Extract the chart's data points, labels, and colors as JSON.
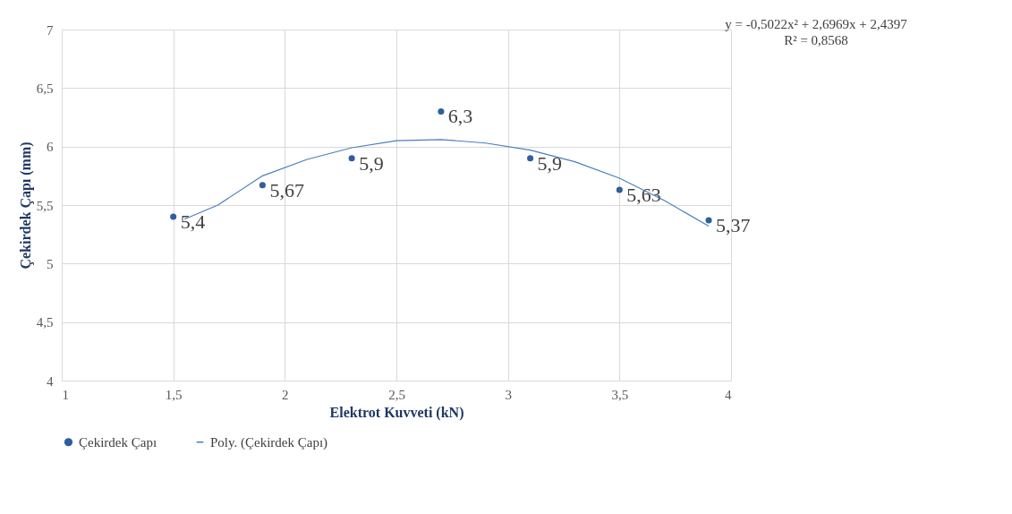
{
  "chart_data": {
    "type": "scatter",
    "xlabel": "Elektrot Kuvveti (kN)",
    "ylabel": "Çekirdek Çapı (mm)",
    "x": [
      1.5,
      1.9,
      2.3,
      2.7,
      3.1,
      3.5,
      3.9
    ],
    "series": [
      {
        "name": "Çekirdek Çapı",
        "color": "#2e5f9e",
        "marker": "circle",
        "values": [
          5.4,
          5.67,
          5.9,
          6.3,
          5.9,
          5.63,
          5.37
        ],
        "value_labels": [
          "5,4",
          "5,67",
          "5,9",
          "6,3",
          "5,9",
          "5,63",
          "5,37"
        ]
      },
      {
        "name": "Poly. (Çekirdek Çapı)",
        "type": "line",
        "color": "#4a7ebb",
        "line_style": "solid",
        "x": [
          1.55,
          1.7,
          1.9,
          2.1,
          2.3,
          2.5,
          2.7,
          2.9,
          3.1,
          3.3,
          3.5,
          3.7,
          3.9
        ],
        "values": [
          5.38,
          5.5,
          5.75,
          5.89,
          5.99,
          6.05,
          6.06,
          6.03,
          5.97,
          5.87,
          5.73,
          5.54,
          5.32
        ]
      }
    ],
    "xlim": [
      1,
      4
    ],
    "xticks": [
      1,
      {
        "value": 1.5,
        "label": "1,5"
      },
      2,
      {
        "value": 2.5,
        "label": "2,5"
      },
      3,
      {
        "value": 3.5,
        "label": "3,5"
      },
      4
    ],
    "ylim": [
      4,
      7
    ],
    "yticks": [
      4,
      {
        "value": 4.5,
        "label": "4,5"
      },
      5,
      {
        "value": 5.5,
        "label": "5,5"
      },
      6,
      {
        "value": 6.5,
        "label": "6,5"
      },
      7
    ],
    "grid": true,
    "legend": "bottom",
    "annotations": [
      "y = -0,5022x² + 2,6969x + 2,4397",
      "R² = 0,8568"
    ]
  }
}
